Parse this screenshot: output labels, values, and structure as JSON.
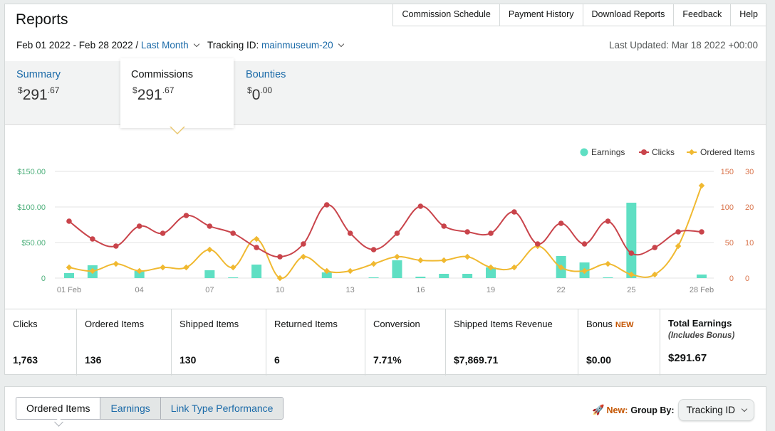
{
  "header": {
    "title": "Reports",
    "nav": [
      "Commission Schedule",
      "Payment History",
      "Download Reports",
      "Feedback",
      "Help"
    ]
  },
  "filters": {
    "date_range": "Feb 01 2022 - Feb 28 2022 /",
    "range_preset": "Last Month",
    "tracking_label": "Tracking ID:",
    "tracking_id": "mainmuseum-20",
    "last_updated": "Last Updated: Mar 18 2022 +00:00"
  },
  "tabs": {
    "summary": {
      "label": "Summary",
      "currency": "$",
      "whole": "291",
      "cents": ".67"
    },
    "commissions": {
      "label": "Commissions",
      "currency": "$",
      "whole": "291",
      "cents": ".67"
    },
    "bounties": {
      "label": "Bounties",
      "currency": "$",
      "whole": "0",
      "cents": ".00"
    }
  },
  "chart_data": {
    "type": "bar",
    "legend": [
      "Earnings",
      "Clicks",
      "Ordered Items"
    ],
    "legend_position": "top-right",
    "colors": {
      "earnings": "#5fdfc3",
      "clicks": "#c9444b",
      "ordered_items": "#f0b931",
      "left_axis": "#4caf7a",
      "right_axis": "#d9734a"
    },
    "x": [
      "01 Feb",
      "02",
      "03",
      "04",
      "05",
      "06",
      "07",
      "08",
      "09",
      "10",
      "11",
      "12",
      "13",
      "14",
      "15",
      "16",
      "17",
      "18",
      "19",
      "20",
      "21",
      "22",
      "23",
      "24",
      "25",
      "26",
      "27",
      "28 Feb"
    ],
    "x_tick_labels": {
      "0": "01 Feb",
      "3": "04",
      "6": "07",
      "9": "10",
      "12": "13",
      "15": "16",
      "18": "19",
      "21": "22",
      "24": "25",
      "27": "28 Feb"
    },
    "earnings_axis": {
      "min": 0,
      "max": 150,
      "ticks": [
        "0",
        "$50.00",
        "$100.00",
        "$150.00"
      ]
    },
    "clicks_axis": {
      "min": 0,
      "max": 150,
      "ticks": [
        "0",
        "50",
        "100",
        "150"
      ]
    },
    "items_axis": {
      "min": 0,
      "max": 30,
      "ticks": [
        "0",
        "10",
        "20",
        "30"
      ]
    },
    "series": [
      {
        "name": "Earnings",
        "type": "bar",
        "axis": "earnings",
        "values": [
          7,
          18,
          0,
          10,
          0,
          0,
          11,
          1,
          19,
          0,
          0,
          8,
          0,
          1,
          25,
          2,
          6,
          6,
          15,
          0,
          0,
          31,
          22,
          1,
          106,
          0,
          0,
          5
        ]
      },
      {
        "name": "Clicks",
        "type": "line",
        "axis": "clicks",
        "values": [
          80,
          55,
          45,
          73,
          63,
          88,
          73,
          63,
          43,
          30,
          48,
          103,
          63,
          40,
          63,
          101,
          73,
          65,
          63,
          93,
          48,
          77,
          48,
          80,
          35,
          43,
          65,
          65
        ]
      },
      {
        "name": "Ordered Items",
        "type": "line",
        "axis": "items",
        "values": [
          3,
          2,
          4,
          2,
          3,
          3,
          8,
          3,
          11,
          0,
          6,
          2,
          2,
          4,
          6,
          5,
          5,
          6,
          3,
          3,
          9,
          3,
          2,
          4,
          1,
          1,
          9,
          26
        ]
      }
    ],
    "grid": true
  },
  "stats": [
    {
      "label": "Clicks",
      "value": "1,763"
    },
    {
      "label": "Ordered Items",
      "value": "136"
    },
    {
      "label": "Shipped Items",
      "value": "130"
    },
    {
      "label": "Returned Items",
      "value": "6"
    },
    {
      "label": "Conversion",
      "value": "7.71%"
    },
    {
      "label": "Shipped Items Revenue",
      "value": "$7,869.71"
    },
    {
      "label": "Bonus",
      "badge": "NEW",
      "value": "$0.00"
    },
    {
      "label": "Total Earnings",
      "sublabel": "(Includes Bonus)",
      "value": "$291.67"
    }
  ],
  "bottom": {
    "tabs": [
      "Ordered Items",
      "Earnings",
      "Link Type Performance"
    ],
    "new_word": "New:",
    "group_by_label": "Group By:",
    "group_by_value": "Tracking ID"
  }
}
